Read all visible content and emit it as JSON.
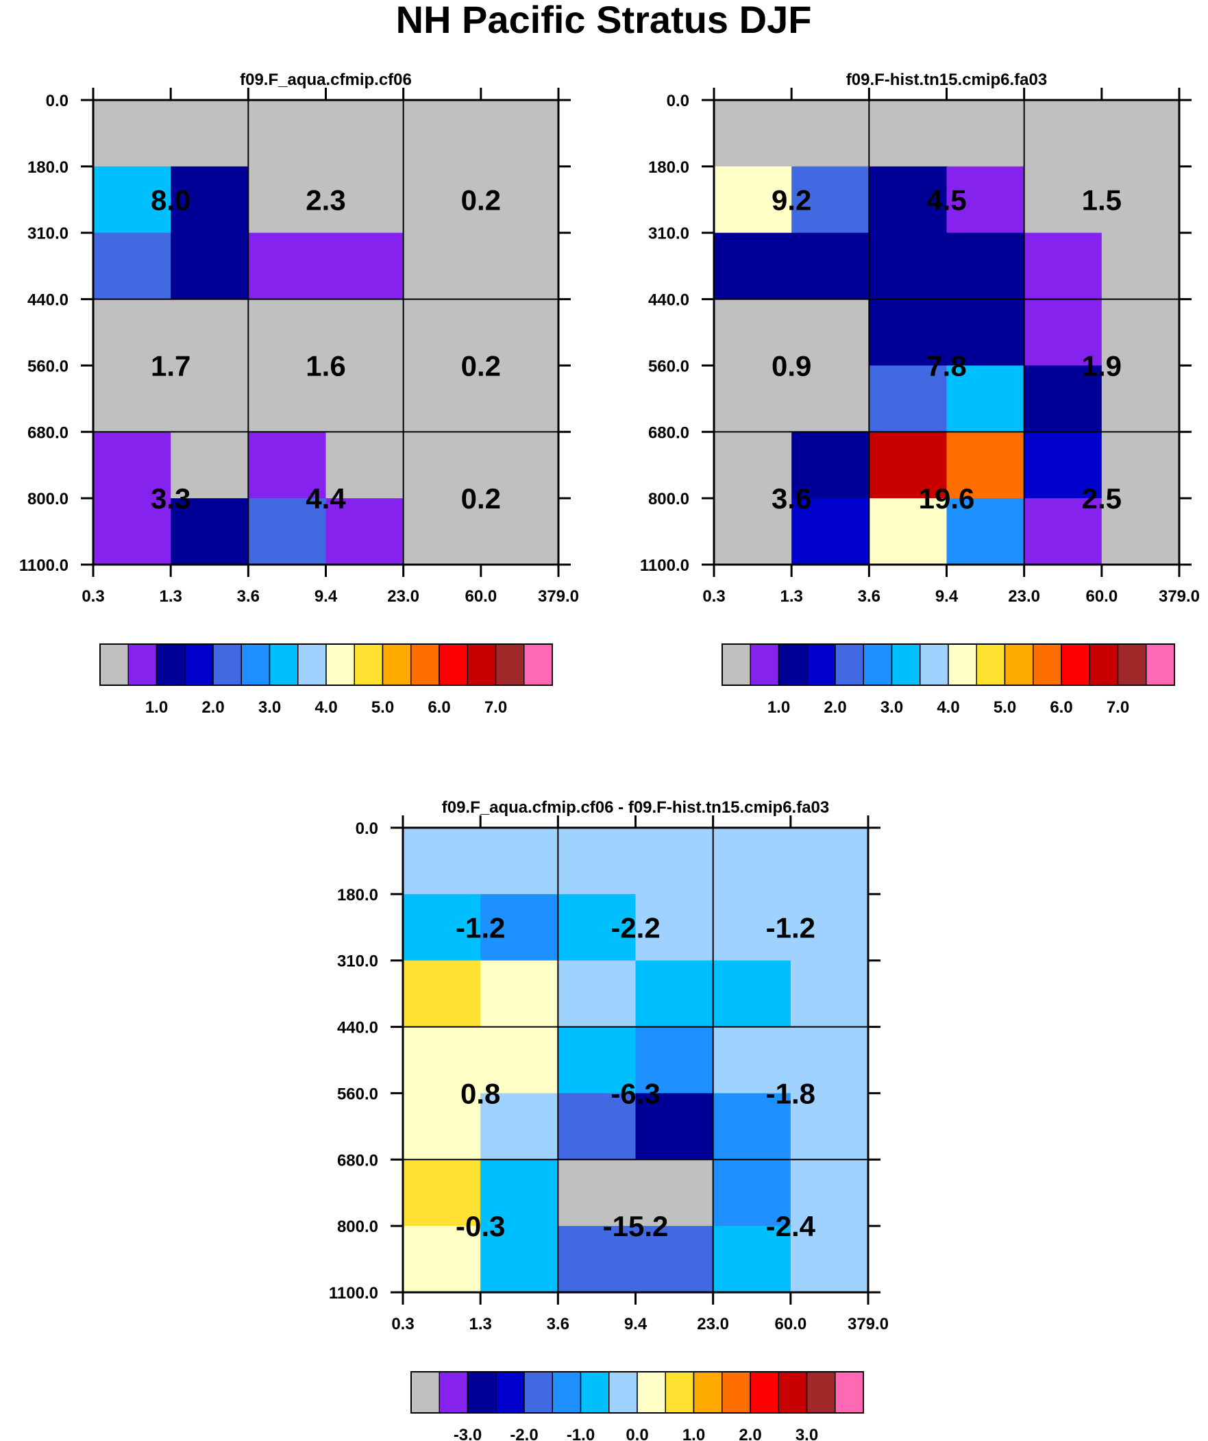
{
  "title": "NH Pacific Stratus DJF",
  "colors": {
    "cmap": [
      "#c0c0c0",
      "#8522ee",
      "#000096",
      "#0000cd",
      "#4169e1",
      "#1e90ff",
      "#00bfff",
      "#a0d2ff",
      "#ffffc8",
      "#ffe132",
      "#ffaa00",
      "#ff6e00",
      "#ff0000",
      "#c80000",
      "#a02828",
      "#ff69b4"
    ],
    "background": "#ffffff",
    "grid": "#000000"
  },
  "axes": {
    "y_ticks": [
      "0.0",
      "180.0",
      "310.0",
      "440.0",
      "560.0",
      "680.0",
      "800.0",
      "1100.0"
    ],
    "x_ticks": [
      "0.3",
      "1.3",
      "3.6",
      "9.4",
      "23.0",
      "60.0",
      "379.0"
    ]
  },
  "chart_data": [
    {
      "type": "heatmap",
      "title": "f09.F_aqua.cfmip.cf06",
      "y_values_top_to_bottom": [
        0.0,
        180.0,
        310.0,
        440.0,
        560.0,
        680.0,
        800.0,
        1100.0
      ],
      "x_values": [
        0.3,
        1.3,
        3.6,
        9.4,
        23.0,
        60.0,
        379.0
      ],
      "cell_color_index": [
        [
          0,
          0,
          0,
          0,
          0,
          0
        ],
        [
          6,
          2,
          0,
          0,
          0,
          0
        ],
        [
          4,
          2,
          1,
          1,
          0,
          0
        ],
        [
          0,
          0,
          0,
          0,
          0,
          0
        ],
        [
          0,
          0,
          0,
          0,
          0,
          0
        ],
        [
          1,
          0,
          1,
          0,
          0,
          0
        ],
        [
          1,
          2,
          4,
          1,
          0,
          0
        ]
      ],
      "block_values": [
        [
          "8.0",
          "2.3",
          "0.2"
        ],
        [
          "1.7",
          "1.6",
          "0.2"
        ],
        [
          "3.3",
          "4.4",
          "0.2"
        ]
      ],
      "colorbar": {
        "labels": [
          "1.0",
          "2.0",
          "3.0",
          "4.0",
          "5.0",
          "6.0",
          "7.0"
        ]
      }
    },
    {
      "type": "heatmap",
      "title": "f09.F-hist.tn15.cmip6.fa03",
      "y_values_top_to_bottom": [
        0.0,
        180.0,
        310.0,
        440.0,
        560.0,
        680.0,
        800.0,
        1100.0
      ],
      "x_values": [
        0.3,
        1.3,
        3.6,
        9.4,
        23.0,
        60.0,
        379.0
      ],
      "cell_color_index": [
        [
          0,
          0,
          0,
          0,
          0,
          0
        ],
        [
          8,
          4,
          2,
          1,
          0,
          0
        ],
        [
          2,
          2,
          2,
          2,
          1,
          0
        ],
        [
          0,
          0,
          2,
          2,
          1,
          0
        ],
        [
          0,
          0,
          4,
          6,
          2,
          0
        ],
        [
          0,
          2,
          13,
          11,
          3,
          0
        ],
        [
          0,
          3,
          8,
          5,
          1,
          0
        ]
      ],
      "block_values": [
        [
          "9.2",
          "4.5",
          "1.5"
        ],
        [
          "0.9",
          "7.8",
          "1.9"
        ],
        [
          "3.6",
          "19.6",
          "2.5"
        ]
      ],
      "colorbar": {
        "labels": [
          "1.0",
          "2.0",
          "3.0",
          "4.0",
          "5.0",
          "6.0",
          "7.0"
        ]
      }
    },
    {
      "type": "heatmap",
      "title": "f09.F_aqua.cfmip.cf06 - f09.F-hist.tn15.cmip6.fa03",
      "y_values_top_to_bottom": [
        0.0,
        180.0,
        310.0,
        440.0,
        560.0,
        680.0,
        800.0,
        1100.0
      ],
      "x_values": [
        0.3,
        1.3,
        3.6,
        9.4,
        23.0,
        60.0,
        379.0
      ],
      "cell_color_index": [
        [
          7,
          7,
          7,
          7,
          7,
          7
        ],
        [
          6,
          5,
          6,
          7,
          7,
          7
        ],
        [
          9,
          8,
          7,
          6,
          6,
          7
        ],
        [
          8,
          8,
          6,
          5,
          7,
          7
        ],
        [
          8,
          7,
          4,
          2,
          5,
          7
        ],
        [
          9,
          6,
          0,
          0,
          5,
          7
        ],
        [
          8,
          6,
          4,
          4,
          6,
          7
        ]
      ],
      "block_values": [
        [
          "-1.2",
          "-2.2",
          "-1.2"
        ],
        [
          "0.8",
          "-6.3",
          "-1.8"
        ],
        [
          "-0.3",
          "-15.2",
          "-2.4"
        ]
      ],
      "colorbar": {
        "labels": [
          "-3.0",
          "-2.0",
          "-1.0",
          "0.0",
          "1.0",
          "2.0",
          "3.0"
        ]
      }
    }
  ]
}
